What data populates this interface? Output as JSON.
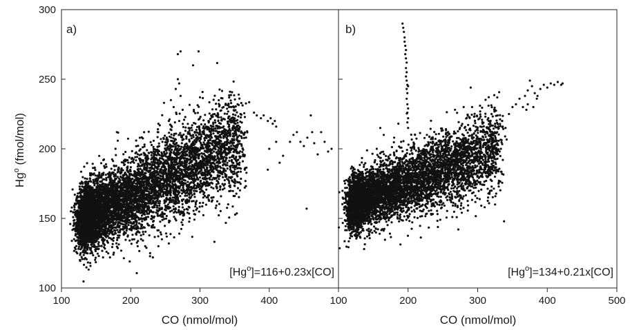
{
  "chart_data": [
    {
      "type": "scatter",
      "panel_label": "a)",
      "annotation": {
        "pre": "[Hg",
        "sup": "o",
        "post": "]=116+0.23x[CO]"
      },
      "ylabel": {
        "main": "Hg",
        "sup": "o",
        "rest": " (fmol/mol)"
      },
      "xlabel": "CO (nmol/mol)",
      "xlim": [
        100,
        500
      ],
      "ylim": [
        100,
        300
      ],
      "xticks": [
        100,
        200,
        300,
        400
      ],
      "yticks": [
        100,
        150,
        200,
        250,
        300
      ],
      "fit": {
        "intercept": 116,
        "slope": 0.23
      },
      "cluster": {
        "x_range": [
          130,
          360
        ],
        "y_at_x130": 150,
        "y_at_x360": 205,
        "spread": 14
      },
      "outliers": [
        [
          265,
          243
        ],
        [
          268,
          250
        ],
        [
          270,
          247
        ],
        [
          272,
          238
        ],
        [
          262,
          230
        ],
        [
          266,
          225
        ],
        [
          270,
          220
        ],
        [
          275,
          228
        ],
        [
          258,
          235
        ],
        [
          268,
          268
        ],
        [
          272,
          270
        ],
        [
          298,
          270
        ],
        [
          290,
          260
        ],
        [
          300,
          237
        ],
        [
          248,
          233
        ],
        [
          255,
          220
        ],
        [
          240,
          218
        ],
        [
          378,
          226
        ],
        [
          382,
          224
        ],
        [
          388,
          222
        ],
        [
          392,
          224
        ],
        [
          398,
          220
        ],
        [
          402,
          222
        ],
        [
          405,
          218
        ],
        [
          408,
          220
        ],
        [
          410,
          216
        ],
        [
          430,
          205
        ],
        [
          435,
          210
        ],
        [
          440,
          212
        ],
        [
          445,
          205
        ],
        [
          450,
          202
        ],
        [
          455,
          208
        ],
        [
          460,
          224
        ],
        [
          462,
          212
        ],
        [
          465,
          204
        ],
        [
          470,
          196
        ],
        [
          475,
          212
        ],
        [
          480,
          205
        ],
        [
          485,
          198
        ],
        [
          490,
          200
        ],
        [
          454,
          157
        ],
        [
          415,
          190
        ],
        [
          420,
          195
        ],
        [
          400,
          200
        ],
        [
          398,
          185
        ],
        [
          410,
          205
        ],
        [
          180,
          212
        ],
        [
          178,
          200
        ],
        [
          138,
          175
        ],
        [
          142,
          170
        ],
        [
          150,
          128
        ],
        [
          160,
          122
        ],
        [
          232,
          122
        ],
        [
          228,
          125
        ],
        [
          240,
          130
        ],
        [
          245,
          135
        ],
        [
          252,
          137
        ],
        [
          255,
          132
        ],
        [
          210,
          130
        ],
        [
          205,
          135
        ],
        [
          165,
          126
        ],
        [
          170,
          122
        ],
        [
          175,
          124
        ]
      ]
    },
    {
      "type": "scatter",
      "panel_label": "b)",
      "annotation": {
        "pre": "[Hg",
        "sup": "o",
        "post": "]=134+0.21x[CO]"
      },
      "xlabel": "CO (nmol/mol)",
      "xlim": [
        100,
        500
      ],
      "ylim": [
        100,
        300
      ],
      "xticks": [
        100,
        200,
        300,
        400,
        500
      ],
      "yticks": [
        100,
        150,
        200,
        250,
        300
      ],
      "fit": {
        "intercept": 134,
        "slope": 0.21
      },
      "cluster": {
        "x_range": [
          120,
          330
        ],
        "y_at_x120": 160,
        "y_at_x330": 200,
        "spread": 12
      },
      "outliers": [
        [
          192,
          290
        ],
        [
          193,
          287
        ],
        [
          194,
          284
        ],
        [
          195,
          280
        ],
        [
          195,
          277
        ],
        [
          196,
          274
        ],
        [
          197,
          271
        ],
        [
          196,
          268
        ],
        [
          197,
          265
        ],
        [
          198,
          262
        ],
        [
          197,
          258
        ],
        [
          198,
          255
        ],
        [
          197,
          252
        ],
        [
          198,
          249
        ],
        [
          199,
          246
        ],
        [
          198,
          243
        ],
        [
          199,
          240
        ],
        [
          198,
          236
        ],
        [
          199,
          232
        ],
        [
          200,
          229
        ],
        [
          199,
          226
        ],
        [
          200,
          222
        ],
        [
          199,
          219
        ],
        [
          200,
          215
        ],
        [
          160,
          215
        ],
        [
          165,
          210
        ],
        [
          180,
          208
        ],
        [
          190,
          205
        ],
        [
          155,
          200
        ],
        [
          210,
          210
        ],
        [
          200,
          245
        ],
        [
          290,
          244
        ],
        [
          292,
          230
        ],
        [
          296,
          220
        ],
        [
          300,
          215
        ],
        [
          320,
          225
        ],
        [
          325,
          218
        ],
        [
          328,
          212
        ],
        [
          335,
          220
        ],
        [
          340,
          215
        ],
        [
          345,
          225
        ],
        [
          350,
          230
        ],
        [
          355,
          232
        ],
        [
          360,
          236
        ],
        [
          365,
          230
        ],
        [
          368,
          238
        ],
        [
          372,
          242
        ],
        [
          375,
          249
        ],
        [
          378,
          245
        ],
        [
          382,
          240
        ],
        [
          386,
          238
        ],
        [
          390,
          243
        ],
        [
          395,
          246
        ],
        [
          400,
          244
        ],
        [
          405,
          247
        ],
        [
          410,
          246
        ],
        [
          415,
          248
        ],
        [
          420,
          246
        ],
        [
          422,
          247
        ],
        [
          370,
          228
        ],
        [
          372,
          232
        ],
        [
          380,
          230
        ],
        [
          385,
          236
        ],
        [
          315,
          165
        ],
        [
          320,
          170
        ],
        [
          330,
          175
        ],
        [
          335,
          182
        ],
        [
          325,
          160
        ],
        [
          310,
          158
        ],
        [
          120,
          162
        ],
        [
          118,
          165
        ],
        [
          116,
          168
        ],
        [
          122,
          158
        ],
        [
          127,
          170
        ]
      ]
    }
  ]
}
